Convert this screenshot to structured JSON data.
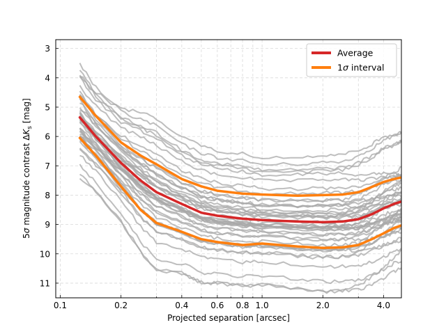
{
  "chart_data": {
    "type": "line",
    "xlabel": "Projected separation [arcsec]",
    "ylabel_parts": [
      "5",
      "σ",
      " magnitude contrast Δ",
      "K",
      "s",
      " [mag]"
    ],
    "x_scale": "log",
    "xlim": [
      0.095,
      4.9
    ],
    "ylim": [
      11.5,
      2.7
    ],
    "y_inverted": true,
    "grid": true,
    "x_ticks": [
      {
        "value": 0.1,
        "label": "0.1"
      },
      {
        "value": 0.2,
        "label": "0.2"
      },
      {
        "value": 0.4,
        "label": "0.4"
      },
      {
        "value": 0.6,
        "label": "0.6"
      },
      {
        "value": 0.8,
        "label": "0.8"
      },
      {
        "value": 1.0,
        "label": "1.0"
      },
      {
        "value": 2.0,
        "label": "2.0"
      },
      {
        "value": 4.0,
        "label": "4.0"
      }
    ],
    "y_ticks": [
      {
        "value": 3,
        "label": "3"
      },
      {
        "value": 4,
        "label": "4"
      },
      {
        "value": 5,
        "label": "5"
      },
      {
        "value": 6,
        "label": "6"
      },
      {
        "value": 7,
        "label": "7"
      },
      {
        "value": 8,
        "label": "8"
      },
      {
        "value": 9,
        "label": "9"
      },
      {
        "value": 10,
        "label": "10"
      },
      {
        "value": 11,
        "label": "11"
      }
    ],
    "legend": {
      "position": "top-right",
      "entries": [
        {
          "label": "Average",
          "color": "#d62728"
        },
        {
          "label_parts": [
            "1",
            "σ",
            " interval"
          ],
          "color": "#ff7f0e"
        }
      ]
    },
    "series": [
      {
        "name": "Average",
        "color": "#d62728",
        "x": [
          0.125,
          0.15,
          0.2,
          0.25,
          0.3,
          0.4,
          0.5,
          0.6,
          0.8,
          1.0,
          1.5,
          2.0,
          2.5,
          3.0,
          3.5,
          4.0,
          4.5,
          4.9
        ],
        "y": [
          5.35,
          6.0,
          6.9,
          7.5,
          7.9,
          8.3,
          8.6,
          8.7,
          8.8,
          8.85,
          8.9,
          8.92,
          8.9,
          8.82,
          8.65,
          8.45,
          8.3,
          8.22
        ]
      },
      {
        "name": "1σ upper",
        "color": "#ff7f0e",
        "x": [
          0.125,
          0.15,
          0.2,
          0.25,
          0.3,
          0.4,
          0.5,
          0.6,
          0.8,
          1.0,
          1.5,
          2.0,
          2.5,
          3.0,
          3.5,
          4.0,
          4.5,
          4.9
        ],
        "y": [
          4.65,
          5.3,
          6.2,
          6.65,
          6.95,
          7.45,
          7.7,
          7.85,
          7.95,
          7.98,
          8.02,
          8.0,
          7.98,
          7.9,
          7.72,
          7.55,
          7.45,
          7.4
        ]
      },
      {
        "name": "1σ lower",
        "color": "#ff7f0e",
        "x": [
          0.125,
          0.15,
          0.2,
          0.25,
          0.3,
          0.4,
          0.5,
          0.6,
          0.8,
          1.0,
          1.5,
          2.0,
          2.5,
          3.0,
          3.5,
          4.0,
          4.5,
          4.9
        ],
        "y": [
          6.05,
          6.65,
          7.7,
          8.5,
          8.95,
          9.25,
          9.5,
          9.6,
          9.7,
          9.65,
          9.75,
          9.8,
          9.78,
          9.7,
          9.5,
          9.3,
          9.12,
          9.03
        ]
      }
    ],
    "background_curves": {
      "color": "#a8a8a8",
      "count": 45,
      "description_free": true,
      "x": [
        0.125,
        0.15,
        0.2,
        0.25,
        0.3,
        0.4,
        0.5,
        0.6,
        0.8,
        1.0,
        1.5,
        2.0,
        2.5,
        3.0,
        3.5,
        4.0,
        4.5,
        4.9
      ]
    }
  }
}
